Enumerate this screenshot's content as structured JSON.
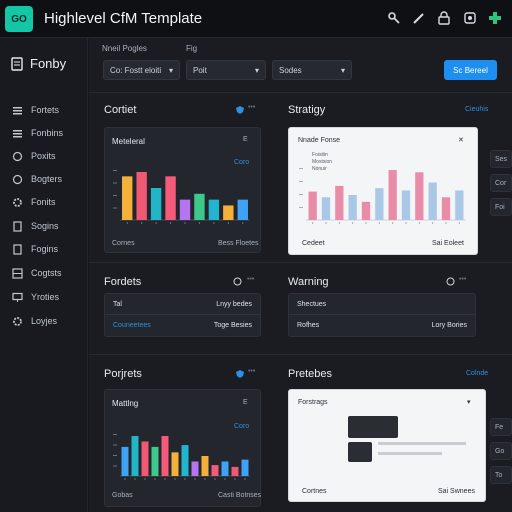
{
  "app": {
    "logo": "GO",
    "title": "Highlevel CfM Template"
  },
  "workspace": {
    "title": "Fonby"
  },
  "sidebar": {
    "items": [
      {
        "label": "Fortets",
        "icon": "list-icon"
      },
      {
        "label": "Fonbins",
        "icon": "list-icon"
      },
      {
        "label": "Poxits",
        "icon": "circle-icon"
      },
      {
        "label": "Bogters",
        "icon": "circle-icon"
      },
      {
        "label": "Fonits",
        "icon": "gear-icon"
      },
      {
        "label": "Sogins",
        "icon": "document-icon"
      },
      {
        "label": "Fogins",
        "icon": "document-icon"
      },
      {
        "label": "Cogtsts",
        "icon": "grid-icon"
      },
      {
        "label": "Yroties",
        "icon": "monitor-icon"
      },
      {
        "label": "Loyjes",
        "icon": "gear-icon"
      }
    ]
  },
  "filters": {
    "label1": "Nneil Pogles",
    "label2": "Fig",
    "select1": "Co: Fostt eloiti",
    "select2": "Poit",
    "select3": "Sodes",
    "action": "Sc Bereel"
  },
  "sections": {
    "contact": {
      "title": "Cortiet",
      "card_title": "Meteleral",
      "card_corner": "E",
      "card_link": "Coro",
      "footer_left": "Cornes",
      "footer_right": "Bess Floetes"
    },
    "strategy": {
      "title": "Stratigy",
      "link": "Cieuhis",
      "card_title": "Nnade Fonse",
      "legend1": "Foisitin",
      "legend2": "Mostsion",
      "legend3": "Nonuir",
      "footer_left": "Cedeet",
      "footer_right": "Sai Eoleet"
    },
    "ports": {
      "title": "Fordets",
      "row1_left": "Tal",
      "row1_right": "Lnyy bedes",
      "row2_left": "Couneetees",
      "row2_right": "Toge Besies"
    },
    "warning": {
      "title": "Warning",
      "row1_left": "Shectues",
      "row2_left": "Rofhes",
      "row2_right": "Lory Bories"
    },
    "projects": {
      "title": "Porjrets",
      "card_title": "Mattlng",
      "card_corner": "E",
      "card_link": "Coro",
      "footer_left": "Gobas",
      "footer_right": "Casti Botnses"
    },
    "pretebes": {
      "title": "Pretebes",
      "link": "Colnde",
      "card_title": "Forstrags",
      "footer_left": "Cortnes",
      "footer_right": "Sai Swnees"
    }
  },
  "side_cards": [
    "Ses",
    "Cor",
    "Foi",
    "Fe",
    "Go",
    "To"
  ],
  "chart_data": [
    {
      "type": "bar",
      "title": "Meteleral",
      "values": [
        30,
        33,
        22,
        30,
        14,
        18,
        14,
        10,
        14
      ],
      "colors": [
        "#f4b13a",
        "#f05873",
        "#21b5c7",
        "#f45b7a",
        "#b574f0",
        "#3cc98a",
        "#22b5cf",
        "#f4b13a",
        "#3ea3f4"
      ]
    },
    {
      "type": "bar",
      "title": "Nnade Fonse",
      "values": [
        25,
        20,
        30,
        22,
        16,
        28,
        44,
        26,
        42,
        33,
        20,
        26
      ],
      "colors": [
        "#e88ca8",
        "#a9c7e6",
        "#e88ca8",
        "#a9c7e6",
        "#e88ca8",
        "#a9c7e6",
        "#e88ca8",
        "#a9c7e6",
        "#e88ca8",
        "#a9c7e6",
        "#e88ca8",
        "#a9c7e6"
      ]
    },
    {
      "type": "bar",
      "title": "Mattlng",
      "values": [
        32,
        44,
        38,
        32,
        44,
        26,
        34,
        16,
        22,
        12,
        16,
        10,
        18
      ],
      "colors": [
        "#3ea3f4",
        "#21b5c7",
        "#f05873",
        "#3cc98a",
        "#f45b7a",
        "#f4b13a",
        "#22b5cf",
        "#b574f0",
        "#f4b13a",
        "#f45b7a",
        "#3ea3f4",
        "#f05873",
        "#3ea3f4"
      ]
    }
  ]
}
